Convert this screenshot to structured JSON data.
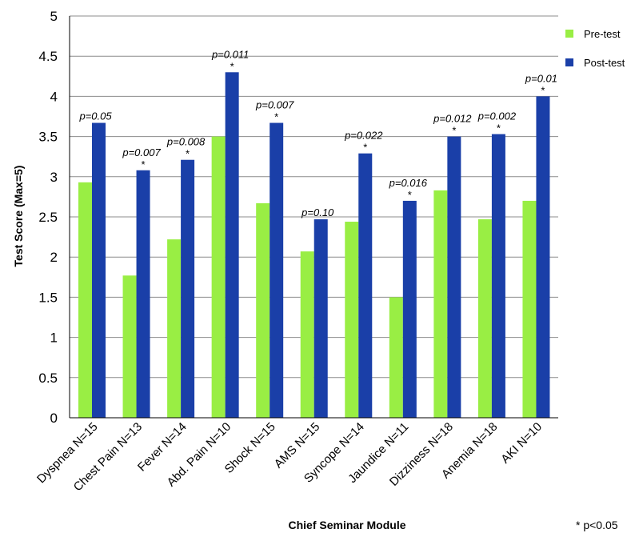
{
  "chart_data": {
    "type": "bar",
    "title": "",
    "xlabel": "Chief Seminar Module",
    "ylabel": "Test Score (Max=5)",
    "ylim": [
      0,
      5
    ],
    "yticks": [
      "0",
      "0.5",
      "1",
      "1.5",
      "2",
      "2.5",
      "3",
      "3.5",
      "4",
      "4.5",
      "5"
    ],
    "grid": true,
    "legend_position": "top-right",
    "categories": [
      "Dyspnea N=15",
      "Chest Pain N=13",
      "Fever N=14",
      "Abd. Pain N=10",
      "Shock N=15",
      "AMS      N=15",
      "Syncope N=14",
      "Jaundice N=11",
      "Dizziness N=18",
      "Anemia N=18",
      "AKI      N=10"
    ],
    "series": [
      {
        "name": "Pre-test",
        "color": "#99ee44",
        "values": [
          2.93,
          1.77,
          2.22,
          3.5,
          2.67,
          2.07,
          2.44,
          1.5,
          2.83,
          2.47,
          2.7
        ]
      },
      {
        "name": "Post-test",
        "color": "#1a3fa8",
        "values": [
          3.67,
          3.08,
          3.21,
          4.3,
          3.67,
          2.47,
          3.29,
          2.7,
          3.5,
          3.53,
          4.0
        ]
      }
    ],
    "annotations": [
      {
        "p": "p=0.05",
        "star": ""
      },
      {
        "p": "p=0.007",
        "star": "*"
      },
      {
        "p": "p=0.008",
        "star": "*"
      },
      {
        "p": "p=0.011",
        "star": "*"
      },
      {
        "p": "p=0.007",
        "star": "*"
      },
      {
        "p": "p=0.10",
        "star": ""
      },
      {
        "p": "p=0.022",
        "star": "*"
      },
      {
        "p": "p=0.016",
        "star": "*"
      },
      {
        "p": "p=0.012",
        "star": "*"
      },
      {
        "p": "p=0.002",
        "star": "*"
      },
      {
        "p": "p=0.01",
        "star": "*"
      }
    ],
    "footnote": "* p<0.05"
  }
}
